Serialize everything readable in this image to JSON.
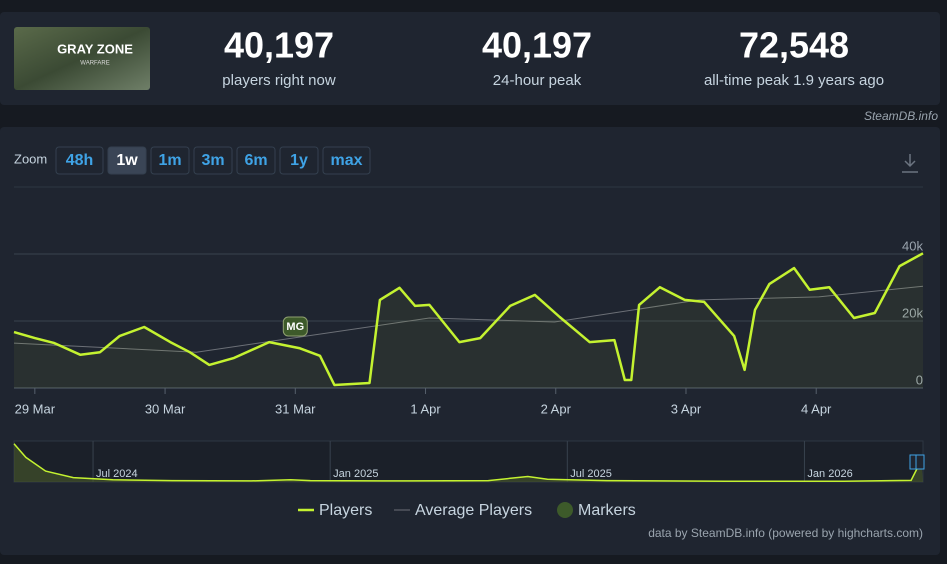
{
  "header": {
    "logo": {
      "title": "GRAY ZONE",
      "subtitle": "WARFARE"
    },
    "stats": [
      {
        "value": "40,197",
        "label": "players right now"
      },
      {
        "value": "40,197",
        "label": "24-hour peak"
      },
      {
        "value": "72,548",
        "label": "all-time peak 1.9 years ago"
      }
    ],
    "source": "SteamDB.info"
  },
  "zoom": {
    "label": "Zoom",
    "buttons": [
      "48h",
      "1w",
      "1m",
      "3m",
      "6m",
      "1y",
      "max"
    ],
    "active": "1w"
  },
  "chart_data": {
    "type": "line",
    "xlim": [
      -0.16,
      6.82
    ],
    "xticks": [
      {
        "value": 0,
        "label": "29 Mar"
      },
      {
        "value": 1,
        "label": "30 Mar"
      },
      {
        "value": 2,
        "label": "31 Mar"
      },
      {
        "value": 3,
        "label": "1 Apr"
      },
      {
        "value": 4,
        "label": "2 Apr"
      },
      {
        "value": 5,
        "label": "3 Apr"
      },
      {
        "value": 6,
        "label": "4 Apr"
      }
    ],
    "ylim": [
      0,
      60000
    ],
    "yticks": [
      0,
      {
        "value": 20000,
        "label": "20k"
      },
      {
        "value": 40000,
        "label": "40k"
      }
    ],
    "grid": true,
    "series": [
      {
        "name": "Players",
        "color": "#c4f230",
        "x": [
          -0.16,
          0,
          0.15,
          0.35,
          0.5,
          0.65,
          0.84,
          1.04,
          1.19,
          1.34,
          1.53,
          1.8,
          2.03,
          2.19,
          2.3,
          2.57,
          2.65,
          2.8,
          2.92,
          3.03,
          3.26,
          3.42,
          3.65,
          3.84,
          4.03,
          4.26,
          4.45,
          4.53,
          4.58,
          4.64,
          4.8,
          4.99,
          5.14,
          5.37,
          5.45,
          5.53,
          5.64,
          5.83,
          5.95,
          6.1,
          6.29,
          6.45,
          6.64,
          6.82
        ],
        "values": [
          16700,
          14900,
          13400,
          9900,
          10700,
          15500,
          18200,
          13700,
          10700,
          6900,
          9000,
          13700,
          11900,
          9600,
          900,
          1500,
          26300,
          29900,
          24500,
          24800,
          13700,
          14900,
          24500,
          27800,
          21200,
          13700,
          14300,
          2400,
          2400,
          24800,
          30100,
          26300,
          25700,
          15500,
          5400,
          23300,
          31000,
          35800,
          29300,
          30100,
          20900,
          22400,
          36400,
          40197
        ]
      },
      {
        "name": "Average Players",
        "color": "#6c7077",
        "x": [
          -0.16,
          1.24,
          3.03,
          3.99,
          5.1,
          6.02,
          6.82
        ],
        "values": [
          13400,
          10700,
          20900,
          19700,
          26300,
          27200,
          30400
        ]
      }
    ],
    "markers": [
      {
        "x": 2.0,
        "label": "MG"
      }
    ],
    "markers_name": "Markers",
    "markers_color": "#3d5a2a",
    "credits": "data by SteamDB.info (powered by highcharts.com)"
  },
  "navigator": {
    "color": "#c4f230",
    "xlim": [
      0,
      23
    ],
    "ylim": [
      0,
      75000
    ],
    "xticks": [
      {
        "value": 2,
        "label": "Jul 2024"
      },
      {
        "value": 8,
        "label": "Jan 2025"
      },
      {
        "value": 14,
        "label": "Jul 2025"
      },
      {
        "value": 20,
        "label": "Jan 2026"
      }
    ],
    "x": [
      0,
      0.3,
      0.8,
      1.5,
      2.5,
      4,
      6,
      7,
      7.5,
      10,
      12,
      13,
      13.5,
      15,
      18,
      21,
      22.7,
      22.96
    ],
    "values": [
      70000,
      45000,
      20000,
      8000,
      4000,
      2500,
      2000,
      4000,
      2500,
      2000,
      2500,
      10000,
      5000,
      2500,
      1500,
      1500,
      3000,
      40197
    ]
  }
}
